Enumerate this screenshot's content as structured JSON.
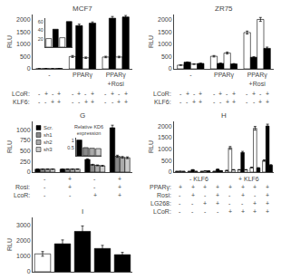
{
  "chart_data": [
    {
      "type": "bar",
      "title": "MCF7",
      "ylabel": "RLU",
      "categories": [
        "-",
        "PPARγ",
        "PPARγ\n+Rosi"
      ],
      "series": [
        {
          "color": "white",
          "values": [
            5,
            500,
            480
          ],
          "errors": [
            1,
            40,
            30
          ]
        },
        {
          "color": "black",
          "values": [
            10,
            1750,
            2050
          ],
          "errors": [
            1,
            60,
            70
          ]
        },
        {
          "color": "white",
          "values": [
            8,
            450,
            480
          ],
          "errors": [
            1,
            30,
            30
          ]
        },
        {
          "color": "black",
          "values": [
            15,
            1850,
            2100
          ],
          "errors": [
            2,
            50,
            60
          ]
        }
      ],
      "ylim": [
        0,
        2200
      ],
      "yticks": [
        0,
        500,
        1000,
        1500,
        2000
      ],
      "grid": false,
      "rows": [
        {
          "label": "LCoR:",
          "signs": [
            [
              "-",
              "+",
              "-",
              "+"
            ],
            [
              "-",
              "+",
              "-",
              "+"
            ],
            [
              "-",
              "+",
              "-",
              "+"
            ]
          ]
        },
        {
          "label": "KLF6:",
          "signs": [
            [
              "-",
              "-",
              "+",
              "+"
            ],
            [
              "-",
              "-",
              "+",
              "+"
            ],
            [
              "-",
              "-",
              "+",
              "+"
            ]
          ]
        }
      ],
      "inset": {
        "type": "bar",
        "categories": [
          null,
          null,
          null,
          null
        ],
        "values": [
          20,
          42,
          22,
          60
        ],
        "colors": [
          "white",
          "black",
          "white",
          "black"
        ],
        "ylim": [
          0,
          68
        ],
        "yticks": [
          20,
          40,
          60
        ],
        "grid": false,
        "tick_labels": "y"
      }
    },
    {
      "type": "bar",
      "title": "ZR75",
      "ylabel": "RLU",
      "categories": [
        "-",
        "PPARγ",
        "PPARγ\n+Rosi"
      ],
      "series": [
        {
          "color": "white",
          "values": [
            150,
            510,
            1470
          ],
          "errors": [
            10,
            30,
            60
          ]
        },
        {
          "color": "black",
          "values": [
            270,
            220,
            470
          ],
          "errors": [
            10,
            15,
            20
          ]
        },
        {
          "color": "white",
          "values": [
            190,
            640,
            2000
          ],
          "errors": [
            10,
            40,
            80
          ]
        },
        {
          "color": "black",
          "values": [
            220,
            200,
            830
          ],
          "errors": [
            10,
            15,
            50
          ]
        }
      ],
      "ylim": [
        0,
        2200
      ],
      "yticks": [
        0,
        500,
        1000,
        1500,
        2000
      ],
      "grid": false,
      "rows": [
        {
          "label": "LCoR:",
          "signs": [
            [
              "-",
              "+",
              "-",
              "+"
            ],
            [
              "-",
              "+",
              "-",
              "+"
            ],
            [
              "-",
              "+",
              "-",
              "+"
            ]
          ]
        },
        {
          "label": "KLF6:",
          "signs": [
            [
              "-",
              "-",
              "+",
              "+"
            ],
            [
              "-",
              "-",
              "+",
              "+"
            ],
            [
              "-",
              "-",
              "+",
              "+"
            ]
          ]
        }
      ]
    },
    {
      "type": "bar",
      "title": "G",
      "ylabel": "RLU",
      "categories": [
        null,
        null,
        null,
        null
      ],
      "series": [
        {
          "name": "Scr.",
          "color": "black",
          "values": [
            70,
            70,
            300,
            1050
          ],
          "errors": [
            5,
            5,
            15,
            60
          ]
        },
        {
          "name": "sh1",
          "color": "#888888",
          "values": [
            70,
            70,
            175,
            375
          ],
          "errors": [
            5,
            5,
            10,
            25
          ]
        },
        {
          "name": "sh2",
          "color": "#aaaaaa",
          "values": [
            70,
            70,
            160,
            350
          ],
          "errors": [
            5,
            5,
            10,
            20
          ]
        },
        {
          "name": "sh3",
          "color": "#cccccc",
          "values": [
            70,
            70,
            150,
            340
          ],
          "errors": [
            5,
            5,
            10,
            20
          ]
        }
      ],
      "ylim": [
        0,
        1200
      ],
      "yticks": [
        0,
        250,
        500,
        750,
        1000
      ],
      "grid": false,
      "tick_labels": "y",
      "legend": "upper left",
      "rows": [
        {
          "signs": [
            "-",
            "+",
            "-",
            "+"
          ]
        },
        {
          "label": "Rosi:",
          "signs": [
            "-",
            "+",
            "-",
            "+"
          ]
        },
        {
          "label": "LcoR:",
          "signs": [
            "-",
            "-",
            "+",
            "+"
          ]
        }
      ],
      "inset": {
        "type": "bar",
        "title": "Relative KD6\nexpression",
        "categories": [
          null,
          null,
          null,
          null
        ],
        "values": [
          1.0,
          0.52,
          0.48,
          0.46
        ],
        "colors": [
          "black",
          "#888888",
          "#aaaaaa",
          "#cccccc"
        ],
        "ylim": [
          0,
          1.15
        ],
        "yticks": [
          0.5,
          1
        ],
        "grid": false,
        "tick_labels": "y"
      }
    },
    {
      "type": "bar",
      "title": "H",
      "ylabel": "RLU",
      "categories": [
        null,
        null,
        null,
        null,
        null,
        null,
        null,
        null
      ],
      "series": [
        {
          "colors": [
            "white",
            "white",
            "white",
            "white",
            "white",
            "white",
            "white",
            "white"
          ],
          "values": [
            30,
            30,
            30,
            30,
            70,
            100,
            200,
            500
          ],
          "errors": [
            2,
            2,
            2,
            2,
            8,
            10,
            15,
            30
          ]
        },
        {
          "colors": [
            "white",
            "black",
            "white",
            "black",
            "white",
            "black",
            "white",
            "black"
          ],
          "values": [
            35,
            100,
            50,
            120,
            1050,
            850,
            1900,
            2000
          ],
          "errors": [
            2,
            8,
            4,
            8,
            60,
            50,
            80,
            80
          ]
        },
        {
          "colors": [
            "white",
            "white",
            "black",
            "black",
            "white",
            "white",
            "black",
            "black"
          ],
          "values": [
            30,
            30,
            50,
            60,
            100,
            100,
            180,
            300
          ],
          "errors": [
            2,
            2,
            4,
            5,
            8,
            10,
            15,
            25
          ]
        }
      ],
      "ylim": [
        0,
        2200
      ],
      "yticks": [
        0,
        500,
        1000,
        1500,
        2000
      ],
      "grid": false,
      "tick_labels": "y",
      "sections": [
        "- KLF6",
        "+ KLF6"
      ],
      "rows": [
        {
          "label": "PPARγ:",
          "signs": [
            "+",
            "+",
            "+",
            "+",
            "+",
            "+",
            "+",
            "+"
          ]
        },
        {
          "label": "Rosi:",
          "signs": [
            "-",
            "+",
            "-",
            "+",
            "-",
            "+",
            "-",
            "+"
          ]
        },
        {
          "label": "LG268:",
          "signs": [
            "-",
            "-",
            "+",
            "+",
            "-",
            "-",
            "+",
            "+"
          ]
        },
        {
          "label": "LCoR:",
          "signs": [
            "-",
            "-",
            "-",
            "-",
            "+",
            "+",
            "+",
            "+"
          ]
        }
      ]
    },
    {
      "type": "bar",
      "title": "I",
      "ylabel": "RLU",
      "categories": [
        null,
        null,
        null,
        null,
        null
      ],
      "series": [
        {
          "colors": [
            "white",
            "black",
            "black",
            "black",
            "black"
          ],
          "values": [
            1150,
            1800,
            2600,
            1500,
            1100
          ],
          "errors": [
            150,
            250,
            350,
            200,
            150
          ]
        }
      ],
      "ylim": [
        0,
        3500
      ],
      "yticks": [
        0,
        1000,
        2000,
        3000
      ],
      "grid": false,
      "tick_labels": "y"
    }
  ]
}
